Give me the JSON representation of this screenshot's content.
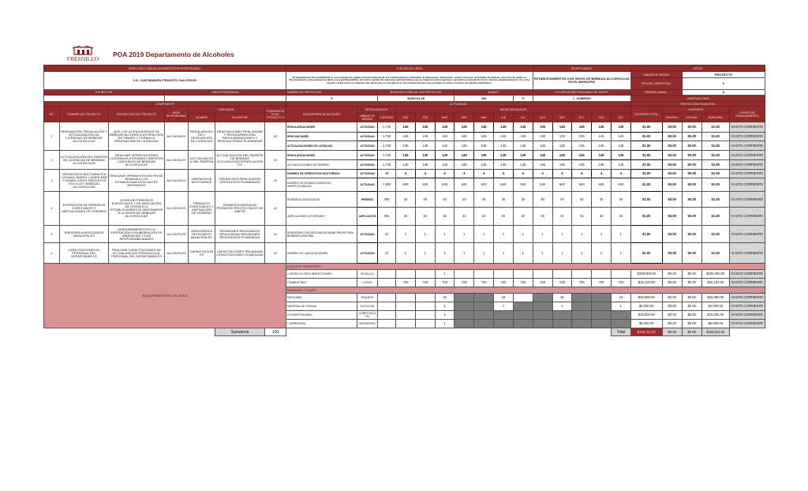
{
  "logo_text": "FRESNILLO",
  "title": "POA 2019 Departamento de Alcoholes",
  "colors": {
    "header": "#922b2b",
    "section": "#d99292",
    "funding_cell": "#d6d6d6",
    "unscheduled": "#7d7d7d",
    "total": "#a3282b"
  },
  "header": {
    "direccion_label": "DIRECCIÓN O UNIDAD ADMINISTRATIVA RESPONSABLE:",
    "direccion_value": "LIC. LUIS MANUEL FRAUSTO GALLEGOS",
    "funcion_label": "FUNCIÓN DEL ÁREA",
    "funcion_value": "El departamento de ALCOHOLES es el encargado de regular el funcionamiento de los establecimientos destinados al almacenaje, distribución, venta y consumo de bebidas alcohólicas, así como de vigilar su funcionamiento, para proteger la salud y la seguridad pública. Así mismo aplicar las sanciones administrativas que se requieran para la apertura, operación y cancelación de los mismos establecimientos. Así como apoyar a la Dirección en relación a las tareas que se consideran en los establecimientos que permitan la venta y consumo de bebidas alcohólicas.",
    "beneficiarios_label": "BENEFICIARIOS",
    "beneficiarios_value": "ESTABLECIMIENTOS CON VENTA DE BEBIDAS ALCOHÓLICAS EN EL MUNICIPIO",
    "metas_label": "METAS",
    "unidad_medida_label": "UNIDAD DE MEDIDA",
    "unidad_medida_value": "PROYECTO",
    "prog_semestral_label": "PROGRA. SEMESTRAL:",
    "prog_semestral_value": "6",
    "prog_anual_label": "PROGRA. ANUAL:",
    "prog_anual_value": "6",
    "eje_label": "EJE RECTOR:",
    "eje_value": "",
    "linea_label": "LINEA ESTRATÉGICA:",
    "linea_value": "",
    "num_proyectos_label": "NÚMERO DE PROYECTOS:",
    "num_proyectos_value": "6",
    "inversion_label": "INVERSIÓN TOTAL DE LOS PROYECTOS:",
    "inversion_value": "$159,011.00",
    "avance_label": "AVANCE:",
    "avance_value": "100",
    "avance_unit": "%",
    "clasificacion_label": "CLASIFICACIÓN FUNCIONAL DEL GASTO",
    "clasificacion_value": "1.- GOBIERNO",
    "observaciones_label": "OBSERVACIONES"
  },
  "sections": {
    "componente": "COMPONENTE",
    "actividades": "ACTIVIDADES",
    "proyeccion": "PROYECCIÓN FINANCIERA"
  },
  "columns": {
    "no": "NO.",
    "nombre": "NOMBRE DEL PROYECTO",
    "descripcion": "DESCRIPCIÓN DEL PROYECTO",
    "area": "ÁREA RESPONSABLE",
    "indicador": "INDICADOR",
    "ind_nombre": "NOMBRE",
    "algoritmo": "ALGORITMO",
    "ponderacion": "PONDERACIÓN DEL PROYECTO %",
    "acciones": "DESCRIPCIÓN DE ACCIONES",
    "metas_anuales": "METAS ANUALES",
    "unidad": "UNIDAD DE MEDIDA",
    "cantidad": "CANTIDAD",
    "metas_mensuales": "METAS MENSUALES",
    "months": [
      "ENE",
      "FEB",
      "MAR",
      "ABR",
      "MAY",
      "JUN",
      "JUL",
      "AGO",
      "SEP",
      "OCT",
      "NOV",
      "DIC"
    ],
    "inversion_total": "INVERSIÓN TOTAL",
    "inversion": "INVERSIÓN",
    "federal": "FEDERAL",
    "estatal": "ESTATAL",
    "municipal": "MUNICIPAL",
    "fuente": "FUENTE DE FINANCIAMIENTO"
  },
  "projects": [
    {
      "no": "1",
      "nombre": "RENOVACIÓN, REGULACIÓN Y ACTUALIZACIÓN DE LICENCIAS DE BEBIDAS ALCOHÓLICAS",
      "descripcion": "QUE LOS LICENCIATARIOS DE BEBIDAS ALCOHÓLICAS REALICEN EN TIEMPO Y FORMA LA RENOVACIÓN DE LICENCIAS",
      "area": "ALCOHOLES",
      "ind_nombre": "REGULARIZACIÓN Y RENOVACIÓN DE LICENCIAS",
      "algoritmo": "RENOVACIONES REALIZADAS Y REGULARIZACIÓN/ REGULARIZACIONES Y RENOVACIONES PLANEADAS",
      "ponderacion": "20",
      "actions": [
        {
          "desc": "REGULARIZACIONES",
          "unidad": "ACTIVIDAD",
          "cantidad": "1,740",
          "months": [
            "145",
            "145",
            "145",
            "145",
            "145",
            "145",
            "145",
            "145",
            "145",
            "145",
            "145",
            "145"
          ],
          "inv": "$1.00",
          "fed": "$0.00",
          "est": "$0.00",
          "mun": "$1.00",
          "fuente": "GASTO CORRIENTE"
        },
        {
          "desc": "RENOVACIONES",
          "unidad": "ACTIVIDAD",
          "cantidad": "1,740",
          "months": [
            "145",
            "145",
            "145",
            "145",
            "145",
            "145",
            "145",
            "145",
            "145",
            "145",
            "145",
            "145"
          ],
          "inv": "$1.00",
          "fed": "$0.00",
          "est": "$0.00",
          "mun": "$1.00",
          "fuente": "GASTO CORRIENTE"
        },
        {
          "desc": "ACTUALIZACIONES DE LICENCIAS",
          "unidad": "ACTIVIDAD",
          "cantidad": "1,740",
          "months": [
            "145",
            "145",
            "145",
            "145",
            "145",
            "145",
            "145",
            "145",
            "145",
            "145",
            "145",
            "145"
          ],
          "inv": "$1.00",
          "fed": "$0.00",
          "est": "$0.00",
          "mun": "$1.00",
          "fuente": "GASTO CORRIENTE"
        }
      ]
    },
    {
      "no": "2",
      "nombre": "ACTUALIZACIÓN DEL PADRÓN DE LICENCIAS DE BEBIDAS ALCOHÓLICAS",
      "descripcion": "REALIZAR VERIFICACIONES CONTINUAS A ESTABLECIMIENTOS CON VENTA DE BEBIDAS ALCOHÓLICAS",
      "area": "ALCOHOLES",
      "ind_nombre": "ACTUALIZACIÓN DEL PADRÓN",
      "algoritmo": "ACTUALIZACIÓN DEL PADRÓN DE BEBIDAS ALCOHÓLICAS/VERIFICACIONES",
      "ponderacion": "20",
      "actions": [
        {
          "desc": "REGULARIZACIONES",
          "unidad": "ACTIVIDAD",
          "cantidad": "1,740",
          "months": [
            "145",
            "145",
            "145",
            "145",
            "145",
            "145",
            "145",
            "145",
            "145",
            "145",
            "145",
            "145"
          ],
          "inv": "$1.00",
          "fed": "$0.00",
          "est": "$0.00",
          "mun": "$1.00",
          "fuente": "GASTO CORRIENTE"
        },
        {
          "desc": "ACTUALIZACIONES DE PADRÓN",
          "unidad": "ACTIVIDAD",
          "cantidad": "1,740",
          "months": [
            "145",
            "145",
            "145",
            "145",
            "145",
            "145",
            "145",
            "145",
            "145",
            "145",
            "145",
            "145"
          ],
          "inv": "$1.00",
          "fed": "$0.00",
          "est": "$0.00",
          "mun": "$1.00",
          "fuente": "GASTO CORRIENTE"
        }
      ]
    },
    {
      "no": "3",
      "nombre": "OPERATIVOS NOCTURNOS A CATINAS, BARES, LADIES BAR Y DEMÁS GIROS PREVISTOS EN LA LEY BEBIDAS ALCOHÓLICAS",
      "descripcion": "REALIZAR OPERATIVOS EN FIN DE SEMANA A LOS ESTABLECIMIENTOS ANTES REFERIDOS",
      "area": "ALCOHOLES",
      "ind_nombre": "OPERATIVOS NOCTURNOS",
      "algoritmo": "OPERATIVOS REALIZADOS/ OPERATIVOS PLANEADOS",
      "ponderacion": "20",
      "actions": [
        {
          "desc": "NÚMERO DE OPERATIVOS NOCTURNOS",
          "unidad": "ACTIVIDAD",
          "cantidad": "48",
          "months": [
            "4",
            "4",
            "4",
            "4",
            "4",
            "4",
            "4",
            "4",
            "4",
            "4",
            "4",
            "4"
          ],
          "inv": "$1.00",
          "fed": "$0.00",
          "est": "$0.00",
          "mun": "$1.00",
          "fuente": "GASTO CORRIENTE"
        },
        {
          "desc": "NÚMERO DE ESTABLECIMIENTOS INSPECCIONADOS",
          "unidad": "ACTIVIDAD",
          "cantidad": "7,680",
          "months": [
            "640",
            "640",
            "640",
            "640",
            "640",
            "640",
            "640",
            "640",
            "640",
            "640",
            "640",
            "640"
          ],
          "inv": "$1.00",
          "fed": "$0.00",
          "est": "$0.00",
          "mun": "$1.00",
          "fuente": "GASTO CORRIENTE"
        }
      ]
    },
    {
      "no": "4",
      "nombre": "EXPEDICIÓN DE PERMISOS EVENTUALES Y AMPLIACIONES DE HORARIO",
      "descripcion": "OTORGAR PERMISOS EVENTUALES Y DE AMPLIACIÓN DE HORARIO A ESTABLECIMIENTOS DESTINADOS A LA VENTA DE BEBIDAS ALCOHÓLICAS",
      "area": "ALCOHOLES",
      "ind_nombre": "PERMISOS EVENTUALES Y AMPLIACIÓN DE HORARIO",
      "algoritmo": "PERMISOS EMITIDOS/ PERMISOS PROYECTADOS DE EMITIR",
      "ponderacion": "20",
      "actions": [
        {
          "desc": "PERMISOS EVENTUALES",
          "unidad": "PERMISO",
          "cantidad": "480",
          "months": [
            "40",
            "40",
            "40",
            "40",
            "40",
            "40",
            "40",
            "40",
            "40",
            "40",
            "40",
            "40"
          ],
          "inv": "$1.00",
          "fed": "$0.00",
          "est": "$0.00",
          "mun": "$1.00",
          "fuente": "GASTO CORRIENTE"
        },
        {
          "desc": "AMPLIACIONES DE HORARIO",
          "unidad": "AMPLIACIÓN",
          "cantidad": "384",
          "months": [
            "32",
            "32",
            "32",
            "32",
            "32",
            "32",
            "32",
            "32",
            "32",
            "32",
            "32",
            "32"
          ],
          "inv": "$1.00",
          "fed": "$0.00",
          "est": "$0.00",
          "mun": "$1.00",
          "fuente": "GASTO CORRIENTE"
        }
      ]
    },
    {
      "no": "5",
      "nombre": "ASESORÍA A DELEGADOS MUNICIPALES",
      "descripcion": "ASESORAMIENTO EN LA EXPEDICIÓN O ELABORACIÓN DE ANUENCIAS Y SUS RESPONSABILIDADES",
      "area": "ALCOHOLES",
      "ind_nombre": "ASESORÍAS A DELEGADOS MUNICIPALES",
      "algoritmo": "REUNIONES REGIONALES REALIZADAS/ REUNIONES REGIONALES PLANEADAS",
      "ponderacion": "10",
      "actions": [
        {
          "desc": "REUNIONES CON DELEGADOS MUNICIPALES PARA BRINDAR ASESORÍA",
          "unidad": "ACTIVIDAD",
          "cantidad": "12",
          "months": [
            "1",
            "1",
            "1",
            "1",
            "1",
            "1",
            "1",
            "1",
            "1",
            "1",
            "1",
            "1"
          ],
          "inv": "$1.00",
          "fed": "$0.00",
          "est": "$0.00",
          "mun": "$1.00",
          "fuente": "GASTO CORRIENTE"
        }
      ]
    },
    {
      "no": "6",
      "nombre": "CAPACITACIONES AL PERSONAL DEL DEPARTAMENTO",
      "descripcion": "REALIZAR CAPACITACIONES DE ACTUALIZACIÓN PERIÓDICA AL PERSONAL DEL DEPARTAMENTO",
      "area": "ALCOHOLES",
      "ind_nombre": "CAPACITACIONES",
      "algoritmo": "CAPACITACIONES RECIBIDAS/ CAPACITACIONES PLANEADAS",
      "ponderacion": "10",
      "actions": [
        {
          "desc": "NÚMERO DE CAPACITACIONES",
          "unidad": "ACTIVIDAD",
          "cantidad": "12",
          "months": [
            "1",
            "1",
            "1",
            "1",
            "1",
            "1",
            "1",
            "1",
            "1",
            "1",
            "1",
            "1"
          ],
          "inv": "$1.00",
          "fed": "$0.00",
          "est": "$0.00",
          "mun": "$1.00",
          "fuente": "GASTO CORRIENTE"
        }
      ]
    }
  ],
  "requirements": {
    "label": "REQUERIMIENTOS DEL ÁREA",
    "groups": [
      {
        "name": "EQUIPO DE TRANSPORTE",
        "items": [
          {
            "desc": "1 VEHÍCULO PARA INSPECCIONES",
            "unidad": "VEHÍCULO",
            "months": [
              "",
              "",
              "1",
              "",
              "",
              "",
              "",
              "",
              "",
              "",
              "",
              ""
            ],
            "shaded": [
              0,
              0,
              0,
              0,
              0,
              0,
              0,
              0,
              0,
              0,
              0,
              0
            ],
            "inv": "$100,000.00",
            "fed": "$0.00",
            "est": "$0.00",
            "mun": "$100,000.00",
            "fuente": "GASTO CORRIENTE"
          },
          {
            "desc": "COMBUSTIBLE",
            "unidad": "LITROS",
            "months": [
              "720",
              "720",
              "720",
              "720",
              "720",
              "720",
              "720",
              "720",
              "720",
              "720",
              "720",
              "720"
            ],
            "shaded": [
              0,
              0,
              0,
              0,
              0,
              0,
              0,
              0,
              0,
              0,
              0,
              0
            ],
            "inv": "$15,120.00",
            "fed": "$0.00",
            "est": "$0.00",
            "mun": "$15,120.00",
            "fuente": "GASTO CORRIENTE"
          }
        ]
      },
      {
        "name": "MOBILIARIO Y EQUIPO",
        "items": [
          {
            "desc": "PAPELERÍA",
            "unidad": "PAQUETE",
            "months": [
              "",
              "",
              "16",
              "",
              "",
              "16",
              "",
              "",
              "16",
              "",
              "",
              "16"
            ],
            "shaded": [
              0,
              0,
              0,
              1,
              1,
              0,
              0,
              1,
              0,
              1,
              1,
              0
            ],
            "inv": "$20,880.00",
            "fed": "$0.00",
            "est": "$0.00",
            "mun": "$20,880.00",
            "fuente": "GASTO CORRIENTE"
          },
          {
            "desc": "MATERIAL DE OFICINA",
            "unidad": "DOTACIÓN",
            "months": [
              "",
              "",
              "1",
              "",
              "",
              "1",
              "",
              "",
              "1",
              "",
              "",
              "1"
            ],
            "shaded": [
              0,
              0,
              0,
              1,
              1,
              0,
              1,
              1,
              0,
              1,
              1,
              0
            ],
            "inv": "$2,000.00",
            "fed": "$0.00",
            "est": "$0.00",
            "mun": "$2,000.00",
            "fuente": "GASTO CORRIENTE"
          },
          {
            "desc": "2 COMPUTADORAS",
            "unidad": "COMPUTADORA",
            "months": [
              "",
              "",
              "1",
              "",
              "",
              "",
              "",
              "",
              "",
              "",
              "",
              ""
            ],
            "shaded": [
              0,
              0,
              0,
              1,
              1,
              1,
              1,
              1,
              1,
              1,
              1,
              1
            ],
            "inv": "$16,000.00",
            "fed": "$0.00",
            "est": "$0.00",
            "mun": "$16,000.00",
            "fuente": "GASTO CORRIENTE"
          },
          {
            "desc": "1 IMPRESORA",
            "unidad": "IMPRESORA",
            "months": [
              "",
              "",
              "1",
              "",
              "",
              "",
              "",
              "",
              "",
              "",
              "",
              ""
            ],
            "shaded": [
              0,
              0,
              0,
              1,
              1,
              1,
              1,
              1,
              1,
              1,
              1,
              1
            ],
            "inv": "$5,000.00",
            "fed": "$0.00",
            "est": "$0.00",
            "mun": "$5,000.00",
            "fuente": "GASTO CORRIENTE"
          }
        ]
      }
    ]
  },
  "footer": {
    "sumatoria_label": "Sumatoria",
    "sumatoria_value": "100",
    "total_label": "Total",
    "total_inv": "$159,011.00",
    "total_fed": "$0.00",
    "total_est": "$0.00",
    "total_mun": "$159,011.00"
  }
}
